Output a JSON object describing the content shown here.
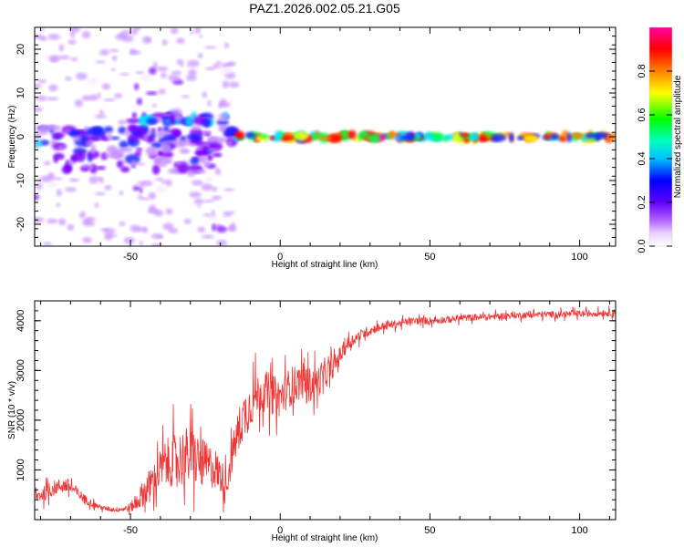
{
  "title": "PAZ1.2026.002.05.21.G05",
  "colors": {
    "snr_line": "#ee3333",
    "frame": "#000000",
    "background": "#ffffff",
    "colormap": [
      "#f4e8ff",
      "#c890ff",
      "#7a00ff",
      "#2020ff",
      "#00e0ff",
      "#00ff40",
      "#ffff00",
      "#ff8000",
      "#ff0000",
      "#ff00a0"
    ]
  },
  "chart_data": [
    {
      "type": "heatmap",
      "xlabel": "Height of straight line (km)",
      "ylabel": "Frequency (Hz)",
      "xlim": [
        -82,
        112
      ],
      "ylim": [
        -25,
        25
      ],
      "xticks": [
        -50,
        0,
        50,
        100
      ],
      "xtick_labels": [
        "-50",
        "0",
        "50",
        "100"
      ],
      "yticks": [
        -20,
        -10,
        0,
        10,
        20
      ],
      "ytick_labels": [
        "-20",
        "-10",
        "0",
        "10",
        "20"
      ],
      "grid": false,
      "colorbar": {
        "label": "Normalized spectral amplitude",
        "range": [
          0,
          1
        ],
        "ticks": [
          0.0,
          0.2,
          0.4,
          0.6,
          0.8
        ],
        "tick_labels": [
          "0.0",
          "0.2",
          "0.4",
          "0.6",
          "0.8"
        ]
      },
      "features": [
        {
          "x_range": [
            -82,
            -15
          ],
          "frequency": [
            -2,
            2
          ],
          "peak_amplitude": 0.4
        },
        {
          "x_range": [
            -50,
            -18
          ],
          "frequency": [
            3,
            5
          ],
          "peak_amplitude": 0.5
        },
        {
          "x_range": [
            -75,
            -20
          ],
          "frequency": [
            -8,
            -2
          ],
          "peak_amplitude": 0.3
        },
        {
          "x_range": [
            -15,
            112
          ],
          "frequency": [
            -0.5,
            0.5
          ],
          "peak_amplitude": 0.95
        }
      ]
    },
    {
      "type": "line",
      "xlabel": "Height of straight line (km)",
      "ylabel": "SNR (10 * v/v)",
      "xlim": [
        -82,
        112
      ],
      "ylim": [
        0,
        4400
      ],
      "xticks": [
        -50,
        0,
        50,
        100
      ],
      "xtick_labels": [
        "-50",
        "0",
        "50",
        "100"
      ],
      "yticks": [
        1000,
        2000,
        3000,
        4000
      ],
      "ytick_labels": [
        "1000",
        "2000",
        "3000",
        "4000"
      ],
      "grid": false,
      "series": [
        {
          "x": [
            -82,
            -78,
            -75,
            -72,
            -70,
            -68,
            -65,
            -62,
            -60,
            -58,
            -55,
            -52,
            -50,
            -48,
            -45,
            -42,
            -40,
            -38,
            -35,
            -32,
            -30,
            -28,
            -25,
            -22,
            -20,
            -18,
            -16,
            -14,
            -12,
            -10,
            -8,
            -6,
            -4,
            -2,
            0,
            2,
            4,
            6,
            8,
            10,
            12,
            15,
            18,
            20,
            22,
            25,
            28,
            30,
            32,
            35,
            40,
            45,
            50,
            55,
            60,
            65,
            70,
            75,
            80,
            85,
            90,
            95,
            100,
            105,
            110,
            112
          ],
          "y": [
            450,
            550,
            650,
            700,
            650,
            550,
            400,
            300,
            250,
            220,
            200,
            220,
            250,
            350,
            600,
            800,
            1000,
            1150,
            1200,
            1250,
            1300,
            1200,
            1100,
            1050,
            900,
            700,
            1300,
            1800,
            2100,
            2300,
            2500,
            2600,
            2550,
            2500,
            2450,
            2600,
            2700,
            2750,
            2800,
            2700,
            2750,
            2900,
            3100,
            3300,
            3500,
            3650,
            3750,
            3800,
            3850,
            3900,
            3950,
            4000,
            4000,
            4020,
            4050,
            4070,
            4080,
            4100,
            4110,
            4120,
            4130,
            4130,
            4140,
            4150,
            4160,
            4160
          ],
          "noise_amplitude": [
            250,
            250,
            250,
            250,
            250,
            200,
            150,
            100,
            80,
            80,
            80,
            100,
            150,
            300,
            500,
            600,
            700,
            800,
            900,
            1000,
            1000,
            900,
            800,
            700,
            600,
            500,
            600,
            700,
            800,
            800,
            700,
            700,
            700,
            650,
            650,
            650,
            650,
            600,
            600,
            600,
            550,
            450,
            350,
            300,
            250,
            200,
            180,
            160,
            150,
            140,
            130,
            120,
            120,
            120,
            110,
            110,
            110,
            110,
            110,
            110,
            110,
            110,
            110,
            110,
            110,
            110
          ]
        }
      ]
    }
  ]
}
